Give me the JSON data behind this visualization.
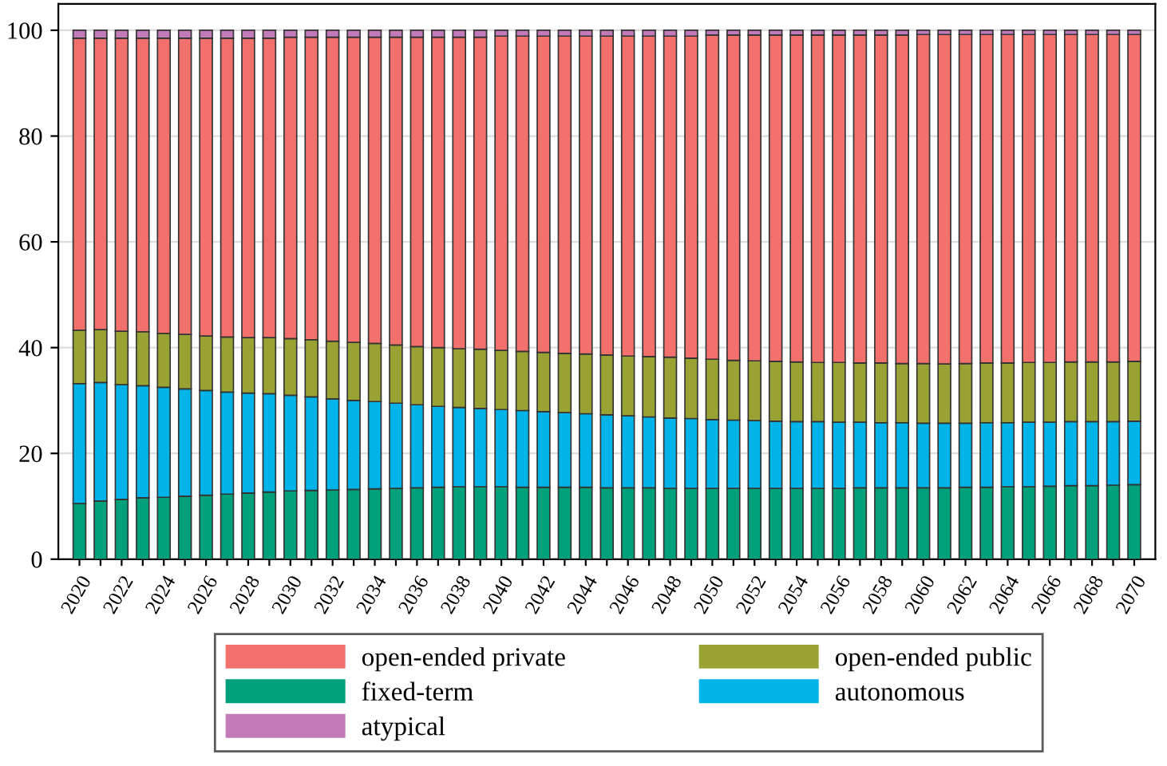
{
  "chart_data": {
    "type": "bar",
    "stacked": true,
    "categories": [
      "2020",
      null,
      "2022",
      null,
      "2024",
      null,
      "2026",
      null,
      "2028",
      null,
      "2030",
      null,
      "2032",
      null,
      "2034",
      null,
      "2036",
      null,
      "2038",
      null,
      "2040",
      null,
      "2042",
      null,
      "2044",
      null,
      "2046",
      null,
      "2048",
      null,
      "2050",
      null,
      "2052",
      null,
      "2054",
      null,
      "2056",
      null,
      "2058",
      null,
      "2060",
      null,
      "2062",
      null,
      "2064",
      null,
      "2066",
      null,
      "2068",
      null,
      "2070"
    ],
    "series": [
      {
        "name": "fixed-term",
        "color": "#00a07a",
        "values": [
          10.5,
          11.0,
          11.3,
          11.6,
          11.7,
          11.9,
          12.1,
          12.3,
          12.5,
          12.7,
          12.9,
          13.0,
          13.1,
          13.2,
          13.3,
          13.4,
          13.5,
          13.6,
          13.7,
          13.7,
          13.7,
          13.6,
          13.6,
          13.6,
          13.6,
          13.5,
          13.5,
          13.5,
          13.4,
          13.4,
          13.4,
          13.4,
          13.4,
          13.4,
          13.4,
          13.4,
          13.4,
          13.5,
          13.5,
          13.5,
          13.5,
          13.5,
          13.6,
          13.6,
          13.7,
          13.7,
          13.8,
          13.9,
          13.9,
          14.0,
          14.1
        ]
      },
      {
        "name": "autonomous",
        "color": "#00b4ea",
        "values": [
          22.7,
          22.4,
          21.7,
          21.2,
          20.8,
          20.3,
          19.8,
          19.3,
          18.9,
          18.6,
          18.1,
          17.7,
          17.2,
          16.8,
          16.5,
          16.1,
          15.7,
          15.3,
          15.0,
          14.8,
          14.6,
          14.5,
          14.3,
          14.1,
          13.9,
          13.8,
          13.6,
          13.4,
          13.3,
          13.2,
          13.0,
          12.9,
          12.8,
          12.7,
          12.6,
          12.6,
          12.5,
          12.4,
          12.3,
          12.3,
          12.2,
          12.2,
          12.1,
          12.2,
          12.1,
          12.2,
          12.1,
          12.1,
          12.1,
          12.0,
          12.0
        ]
      },
      {
        "name": "open-ended public",
        "color": "#9aa234",
        "values": [
          10.1,
          10.0,
          10.1,
          10.2,
          10.2,
          10.3,
          10.3,
          10.4,
          10.5,
          10.6,
          10.7,
          10.8,
          10.9,
          11.0,
          11.0,
          11.0,
          11.0,
          11.1,
          11.1,
          11.2,
          11.2,
          11.2,
          11.2,
          11.2,
          11.3,
          11.3,
          11.3,
          11.4,
          11.5,
          11.4,
          11.4,
          11.3,
          11.3,
          11.3,
          11.3,
          11.2,
          11.3,
          11.2,
          11.3,
          11.2,
          11.3,
          11.2,
          11.3,
          11.3,
          11.3,
          11.3,
          11.3,
          11.3,
          11.3,
          11.3,
          11.3
        ]
      },
      {
        "name": "open-ended private",
        "color": "#f2716c",
        "values": [
          55.2,
          55.1,
          55.4,
          55.5,
          55.8,
          56.0,
          56.3,
          56.5,
          56.6,
          56.6,
          57.0,
          57.2,
          57.5,
          57.7,
          57.9,
          58.2,
          58.5,
          58.7,
          58.9,
          59.0,
          59.4,
          59.6,
          59.8,
          60.0,
          60.1,
          60.3,
          60.5,
          60.6,
          60.7,
          60.9,
          61.3,
          61.5,
          61.6,
          61.7,
          61.8,
          61.9,
          61.9,
          62.0,
          62.0,
          62.1,
          62.2,
          62.3,
          62.2,
          62.1,
          62.1,
          62.0,
          62.0,
          61.9,
          61.9,
          61.9,
          61.8
        ]
      },
      {
        "name": "atypical",
        "color": "#c27ab8",
        "values": [
          1.5,
          1.5,
          1.5,
          1.5,
          1.5,
          1.5,
          1.5,
          1.5,
          1.5,
          1.5,
          1.3,
          1.3,
          1.3,
          1.3,
          1.3,
          1.3,
          1.3,
          1.3,
          1.3,
          1.3,
          1.1,
          1.1,
          1.1,
          1.1,
          1.1,
          1.1,
          1.1,
          1.1,
          1.1,
          1.1,
          0.9,
          0.9,
          0.9,
          0.9,
          0.9,
          0.9,
          0.9,
          0.9,
          0.9,
          0.9,
          0.8,
          0.8,
          0.8,
          0.8,
          0.8,
          0.8,
          0.8,
          0.8,
          0.8,
          0.8,
          0.8
        ]
      }
    ],
    "ylim": [
      0,
      105
    ],
    "yticks": [
      0,
      20,
      40,
      60,
      80,
      100
    ],
    "grid": "y",
    "legend": "bottom"
  }
}
